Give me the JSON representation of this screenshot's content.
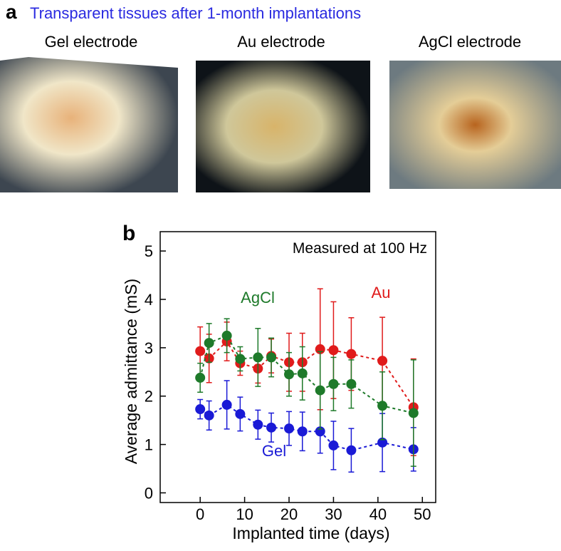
{
  "panel_a": {
    "label": "a",
    "title": "Transparent tissues after 1-month implantations",
    "captions": [
      "Gel electrode",
      "Au electrode",
      "AgCl electrode"
    ]
  },
  "chart_data": {
    "type": "errorline",
    "panel_label": "b",
    "annotation": "Measured at 100 Hz",
    "x_label": "Implanted time (days)",
    "y_label": "Average admittance (mS)",
    "xlim": [
      -9,
      53
    ],
    "ylim": [
      -0.2,
      5.4
    ],
    "xticks": [
      0,
      10,
      20,
      30,
      40,
      50
    ],
    "yticks": [
      0,
      1,
      2,
      3,
      4,
      5
    ],
    "x": [
      0,
      2,
      6,
      9,
      13,
      16,
      20,
      23,
      27,
      30,
      34,
      41,
      48
    ],
    "series": [
      {
        "name": "Gel",
        "color": "#1a1ad6",
        "values": [
          1.73,
          1.6,
          1.82,
          1.63,
          1.41,
          1.35,
          1.33,
          1.27,
          1.27,
          0.98,
          0.88,
          1.04,
          0.9
        ],
        "errors": [
          0.2,
          0.3,
          0.5,
          0.35,
          0.3,
          0.3,
          0.35,
          0.4,
          0.45,
          0.5,
          0.45,
          0.6,
          0.45
        ]
      },
      {
        "name": "Au",
        "color": "#e01b1b",
        "values": [
          2.93,
          2.78,
          3.13,
          2.68,
          2.57,
          2.83,
          2.7,
          2.7,
          2.97,
          2.95,
          2.87,
          2.73,
          1.77
        ],
        "errors": [
          0.5,
          0.5,
          0.4,
          0.25,
          0.3,
          0.35,
          0.6,
          0.6,
          1.25,
          1.0,
          0.75,
          0.9,
          1.0
        ]
      },
      {
        "name": "AgCl",
        "color": "#1e7a2a",
        "values": [
          2.38,
          3.1,
          3.25,
          2.77,
          2.8,
          2.8,
          2.45,
          2.47,
          2.12,
          2.25,
          2.25,
          1.8,
          1.65
        ],
        "errors": [
          0.3,
          0.4,
          0.35,
          0.25,
          0.6,
          0.4,
          0.45,
          0.55,
          0.8,
          0.55,
          0.5,
          0.7,
          1.1
        ]
      }
    ]
  }
}
